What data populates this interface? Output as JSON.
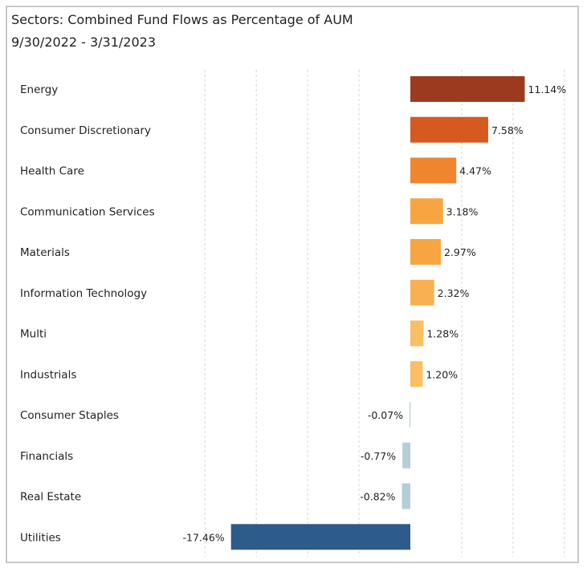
{
  "title": "Sectors:  Combined Fund Flows as Percentage of AUM",
  "subtitle": "9/30/2022 - 3/31/2023",
  "chart_data": {
    "type": "bar",
    "orientation": "horizontal",
    "title": "Sectors:  Combined Fund Flows as Percentage of AUM",
    "subtitle": "9/30/2022 - 3/31/2023",
    "categories": [
      "Energy",
      "Consumer Discretionary",
      "Health Care",
      "Communication Services",
      "Materials",
      "Information Technology",
      "Multi",
      "Industrials",
      "Consumer Staples",
      "Financials",
      "Real Estate",
      "Utilities"
    ],
    "values": [
      11.14,
      7.58,
      4.47,
      3.18,
      2.97,
      2.32,
      1.28,
      1.2,
      -0.07,
      -0.77,
      -0.82,
      -17.46
    ],
    "labels": [
      "11.14%",
      "7.58%",
      "4.47%",
      "3.18%",
      "2.97%",
      "2.32%",
      "1.28%",
      "1.20%",
      "-0.07%",
      "-0.77%",
      "-0.82%",
      "-17.46%"
    ],
    "colors": [
      "#9c3a1f",
      "#d45a20",
      "#f08530",
      "#f7a540",
      "#f7a540",
      "#f9b050",
      "#fbbe62",
      "#fbbe62",
      "#a9c6b8",
      "#b5cdd6",
      "#b5cdd6",
      "#2d5b8a"
    ],
    "xlim": [
      -20,
      15
    ],
    "grid": true,
    "legend": "none"
  }
}
